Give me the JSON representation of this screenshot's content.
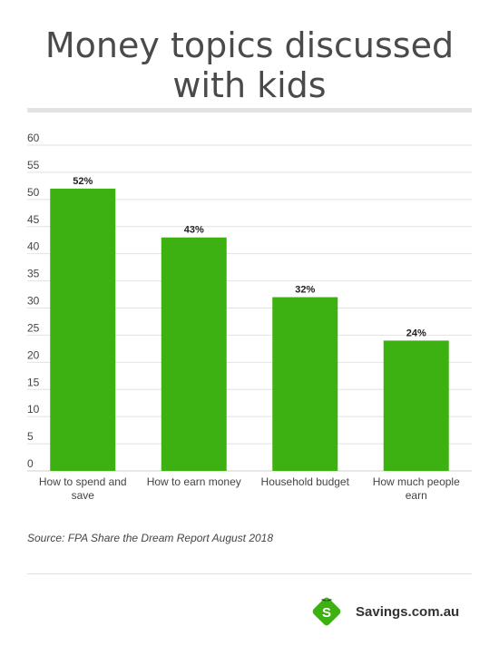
{
  "title_line1": "Money topics discussed",
  "title_line2": "with kids",
  "source": "Source: FPA Share the Dream Report August 2018",
  "brand": {
    "name": "Savings.com.au",
    "icon": "savings-logo-icon",
    "mark_letter": "S",
    "color": "#3db012"
  },
  "colors": {
    "bar": "#3db012",
    "grid": "#e2e2e2",
    "text": "#444444"
  },
  "chart_data": {
    "type": "bar",
    "categories": [
      [
        "How to spend and",
        "save"
      ],
      [
        "How to earn money"
      ],
      [
        "Household budget"
      ],
      [
        "How much people",
        "earn"
      ]
    ],
    "values": [
      52,
      43,
      32,
      24
    ],
    "data_labels": [
      "52%",
      "43%",
      "32%",
      "24%"
    ],
    "yticks": [
      0,
      5,
      10,
      15,
      20,
      25,
      30,
      35,
      40,
      45,
      50,
      55,
      60
    ],
    "ylim": [
      0,
      60
    ],
    "grid": true,
    "legend": "none"
  }
}
